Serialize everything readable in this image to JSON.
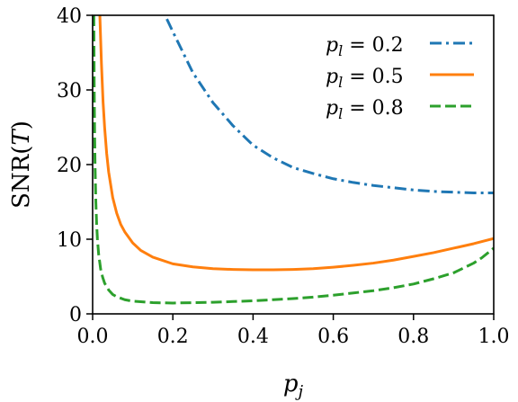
{
  "chart_data": {
    "type": "line",
    "title": "",
    "xlabel": "p_j",
    "ylabel": "SNR(T)",
    "xlim": [
      0.0,
      1.0
    ],
    "ylim": [
      0,
      40
    ],
    "xticks": [
      0.0,
      0.2,
      0.4,
      0.6,
      0.8,
      1.0
    ],
    "xtick_labels": [
      "0.0",
      "0.2",
      "0.4",
      "0.6",
      "0.8",
      "1.0"
    ],
    "yticks": [
      0,
      10,
      20,
      30,
      40
    ],
    "ytick_labels": [
      "0",
      "10",
      "20",
      "30",
      "40"
    ],
    "grid": false,
    "legend_position": "top-right",
    "series": [
      {
        "name": "p_l = 0.2",
        "legend_var": "p",
        "legend_sub": "l",
        "legend_value": " = 0.2",
        "color": "#1f77b4",
        "style": "dashdot",
        "x": [
          0.185,
          0.2,
          0.25,
          0.3,
          0.35,
          0.4,
          0.45,
          0.5,
          0.55,
          0.6,
          0.65,
          0.7,
          0.75,
          0.8,
          0.85,
          0.9,
          0.95,
          1.0
        ],
        "y": [
          39.5,
          37.8,
          32.3,
          28.3,
          25.2,
          22.6,
          20.9,
          19.6,
          18.8,
          18.1,
          17.6,
          17.2,
          16.9,
          16.6,
          16.4,
          16.3,
          16.2,
          16.2
        ]
      },
      {
        "name": "p_l = 0.5",
        "legend_var": "p",
        "legend_sub": "l",
        "legend_value": " = 0.5",
        "color": "#ff7f0e",
        "style": "solid",
        "x": [
          0.018,
          0.022,
          0.026,
          0.03,
          0.035,
          0.04,
          0.05,
          0.06,
          0.07,
          0.08,
          0.1,
          0.12,
          0.15,
          0.2,
          0.25,
          0.3,
          0.35,
          0.4,
          0.45,
          0.5,
          0.55,
          0.6,
          0.65,
          0.7,
          0.75,
          0.8,
          0.85,
          0.9,
          0.95,
          1.0
        ],
        "y": [
          40.0,
          33.5,
          28.4,
          24.9,
          21.5,
          19.0,
          15.6,
          13.5,
          12.0,
          11.0,
          9.5,
          8.5,
          7.6,
          6.7,
          6.3,
          6.05,
          5.95,
          5.9,
          5.9,
          5.95,
          6.05,
          6.25,
          6.5,
          6.8,
          7.2,
          7.7,
          8.2,
          8.8,
          9.4,
          10.1
        ]
      },
      {
        "name": "p_l = 0.8",
        "legend_var": "p",
        "legend_sub": "l",
        "legend_value": " = 0.8",
        "color": "#2ca02c",
        "style": "dashed",
        "x": [
          0.003,
          0.004,
          0.005,
          0.006,
          0.008,
          0.01,
          0.012,
          0.015,
          0.02,
          0.025,
          0.03,
          0.04,
          0.05,
          0.06,
          0.08,
          0.1,
          0.15,
          0.2,
          0.25,
          0.3,
          0.35,
          0.4,
          0.45,
          0.5,
          0.55,
          0.6,
          0.65,
          0.7,
          0.75,
          0.8,
          0.85,
          0.9,
          0.95,
          0.97,
          1.0
        ],
        "y": [
          40.0,
          30.0,
          24.0,
          20.0,
          15.0,
          12.0,
          10.0,
          8.0,
          6.0,
          4.9,
          4.1,
          3.2,
          2.6,
          2.3,
          1.9,
          1.7,
          1.5,
          1.45,
          1.5,
          1.55,
          1.65,
          1.75,
          1.9,
          2.05,
          2.25,
          2.5,
          2.8,
          3.1,
          3.5,
          4.0,
          4.7,
          5.5,
          6.8,
          7.5,
          8.8
        ]
      }
    ]
  }
}
